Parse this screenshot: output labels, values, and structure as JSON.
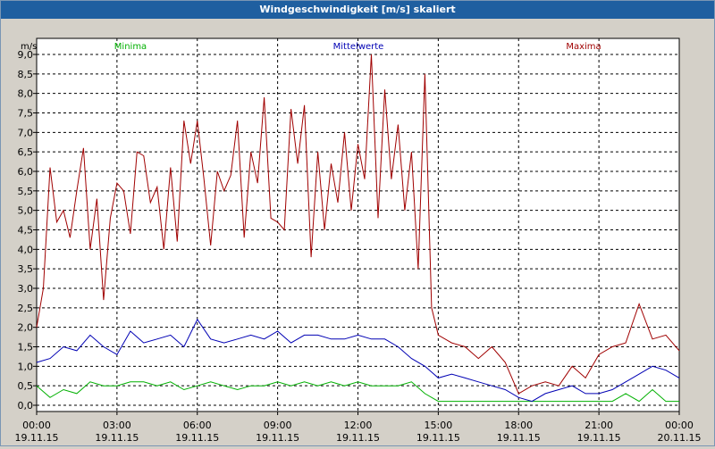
{
  "window": {
    "title": "Windgeschwindigkeit [m/s] skaliert"
  },
  "chart_data": {
    "type": "line",
    "title": "Windgeschwindigkeit [m/s] skaliert",
    "ylabel": "m/s",
    "xlabel": "",
    "ylim": [
      0,
      9
    ],
    "xlim_hours": [
      0,
      24
    ],
    "grid": true,
    "legend_placement": "top",
    "y_ticks": [
      "0,0",
      "0,5",
      "1,0",
      "1,5",
      "2,0",
      "2,5",
      "3,0",
      "3,5",
      "4,0",
      "4,5",
      "5,0",
      "5,5",
      "6,0",
      "6,5",
      "7,0",
      "7,5",
      "8,0",
      "8,5",
      "9,0"
    ],
    "x_ticks": [
      {
        "time": "00:00",
        "date": "19.11.15"
      },
      {
        "time": "03:00",
        "date": "19.11.15"
      },
      {
        "time": "06:00",
        "date": "19.11.15"
      },
      {
        "time": "09:00",
        "date": "19.11.15"
      },
      {
        "time": "12:00",
        "date": "19.11.15"
      },
      {
        "time": "15:00",
        "date": "19.11.15"
      },
      {
        "time": "18:00",
        "date": "19.11.15"
      },
      {
        "time": "21:00",
        "date": "19.11.15"
      },
      {
        "time": "00:00",
        "date": "20.11.15"
      }
    ],
    "series": [
      {
        "name": "Minima",
        "color": "#00b000",
        "x": [
          0,
          0.5,
          1,
          1.5,
          2,
          2.5,
          3,
          3.5,
          4,
          4.5,
          5,
          5.5,
          6,
          6.5,
          7,
          7.5,
          8,
          8.5,
          9,
          9.5,
          10,
          10.5,
          11,
          11.5,
          12,
          12.5,
          13,
          13.5,
          14,
          14.5,
          15,
          15.5,
          16,
          16.5,
          17,
          17.5,
          18,
          18.5,
          19,
          19.5,
          20,
          20.5,
          21,
          21.5,
          22,
          22.5,
          23,
          23.5,
          24
        ],
        "values": [
          0.5,
          0.2,
          0.4,
          0.3,
          0.6,
          0.5,
          0.5,
          0.6,
          0.6,
          0.5,
          0.6,
          0.4,
          0.5,
          0.6,
          0.5,
          0.4,
          0.5,
          0.5,
          0.6,
          0.5,
          0.6,
          0.5,
          0.6,
          0.5,
          0.6,
          0.5,
          0.5,
          0.5,
          0.6,
          0.3,
          0.1,
          0.1,
          0.1,
          0.1,
          0.1,
          0.1,
          0.1,
          0.1,
          0.1,
          0.1,
          0.1,
          0.1,
          0.1,
          0.1,
          0.3,
          0.1,
          0.4,
          0.1,
          0.1
        ]
      },
      {
        "name": "Mittelwerte",
        "color": "#0000b4",
        "x": [
          0,
          0.5,
          1,
          1.5,
          2,
          2.5,
          3,
          3.5,
          4,
          4.5,
          5,
          5.5,
          6,
          6.5,
          7,
          7.5,
          8,
          8.5,
          9,
          9.5,
          10,
          10.5,
          11,
          11.5,
          12,
          12.5,
          13,
          13.5,
          14,
          14.5,
          15,
          15.5,
          16,
          16.5,
          17,
          17.5,
          18,
          18.5,
          19,
          19.5,
          20,
          20.5,
          21,
          21.5,
          22,
          22.5,
          23,
          23.5,
          24
        ],
        "values": [
          1.1,
          1.2,
          1.5,
          1.4,
          1.8,
          1.5,
          1.3,
          1.9,
          1.6,
          1.7,
          1.8,
          1.5,
          2.2,
          1.7,
          1.6,
          1.7,
          1.8,
          1.7,
          1.9,
          1.6,
          1.8,
          1.8,
          1.7,
          1.7,
          1.8,
          1.7,
          1.7,
          1.5,
          1.2,
          1.0,
          0.7,
          0.8,
          0.7,
          0.6,
          0.5,
          0.4,
          0.2,
          0.1,
          0.3,
          0.4,
          0.5,
          0.3,
          0.3,
          0.4,
          0.6,
          0.8,
          1.0,
          0.9,
          0.7
        ]
      },
      {
        "name": "Maxima",
        "color": "#a00000",
        "x": [
          0,
          0.25,
          0.5,
          0.75,
          1,
          1.25,
          1.5,
          1.75,
          2,
          2.25,
          2.5,
          2.75,
          3,
          3.25,
          3.5,
          3.75,
          4,
          4.25,
          4.5,
          4.75,
          5,
          5.25,
          5.5,
          5.75,
          6,
          6.25,
          6.5,
          6.75,
          7,
          7.25,
          7.5,
          7.75,
          8,
          8.25,
          8.5,
          8.75,
          9,
          9.25,
          9.5,
          9.75,
          10,
          10.25,
          10.5,
          10.75,
          11,
          11.25,
          11.5,
          11.75,
          12,
          12.25,
          12.5,
          12.75,
          13,
          13.25,
          13.5,
          13.75,
          14,
          14.25,
          14.5,
          14.75,
          15,
          15.5,
          16,
          16.5,
          17,
          17.5,
          18,
          18.5,
          19,
          19.5,
          20,
          20.5,
          21,
          21.5,
          22,
          22.5,
          23,
          23.5,
          24
        ],
        "values": [
          2.0,
          3.0,
          6.1,
          4.7,
          5.0,
          4.3,
          5.5,
          6.6,
          4.0,
          5.3,
          2.7,
          4.8,
          5.7,
          5.5,
          4.4,
          6.5,
          6.4,
          5.2,
          5.6,
          4.0,
          6.1,
          4.2,
          7.3,
          6.2,
          7.3,
          5.8,
          4.1,
          6.0,
          5.5,
          5.9,
          7.3,
          4.3,
          6.5,
          5.7,
          7.9,
          4.8,
          4.7,
          4.5,
          7.6,
          6.2,
          7.7,
          3.8,
          6.5,
          4.5,
          6.2,
          5.2,
          7.0,
          5.0,
          6.7,
          5.8,
          9.0,
          4.8,
          8.1,
          5.8,
          7.2,
          5.0,
          6.5,
          3.5,
          8.5,
          2.5,
          1.8,
          1.6,
          1.5,
          1.2,
          1.5,
          1.1,
          0.3,
          0.5,
          0.6,
          0.5,
          1.0,
          0.7,
          1.3,
          1.5,
          1.6,
          2.6,
          1.7,
          1.8,
          1.4
        ]
      }
    ]
  }
}
